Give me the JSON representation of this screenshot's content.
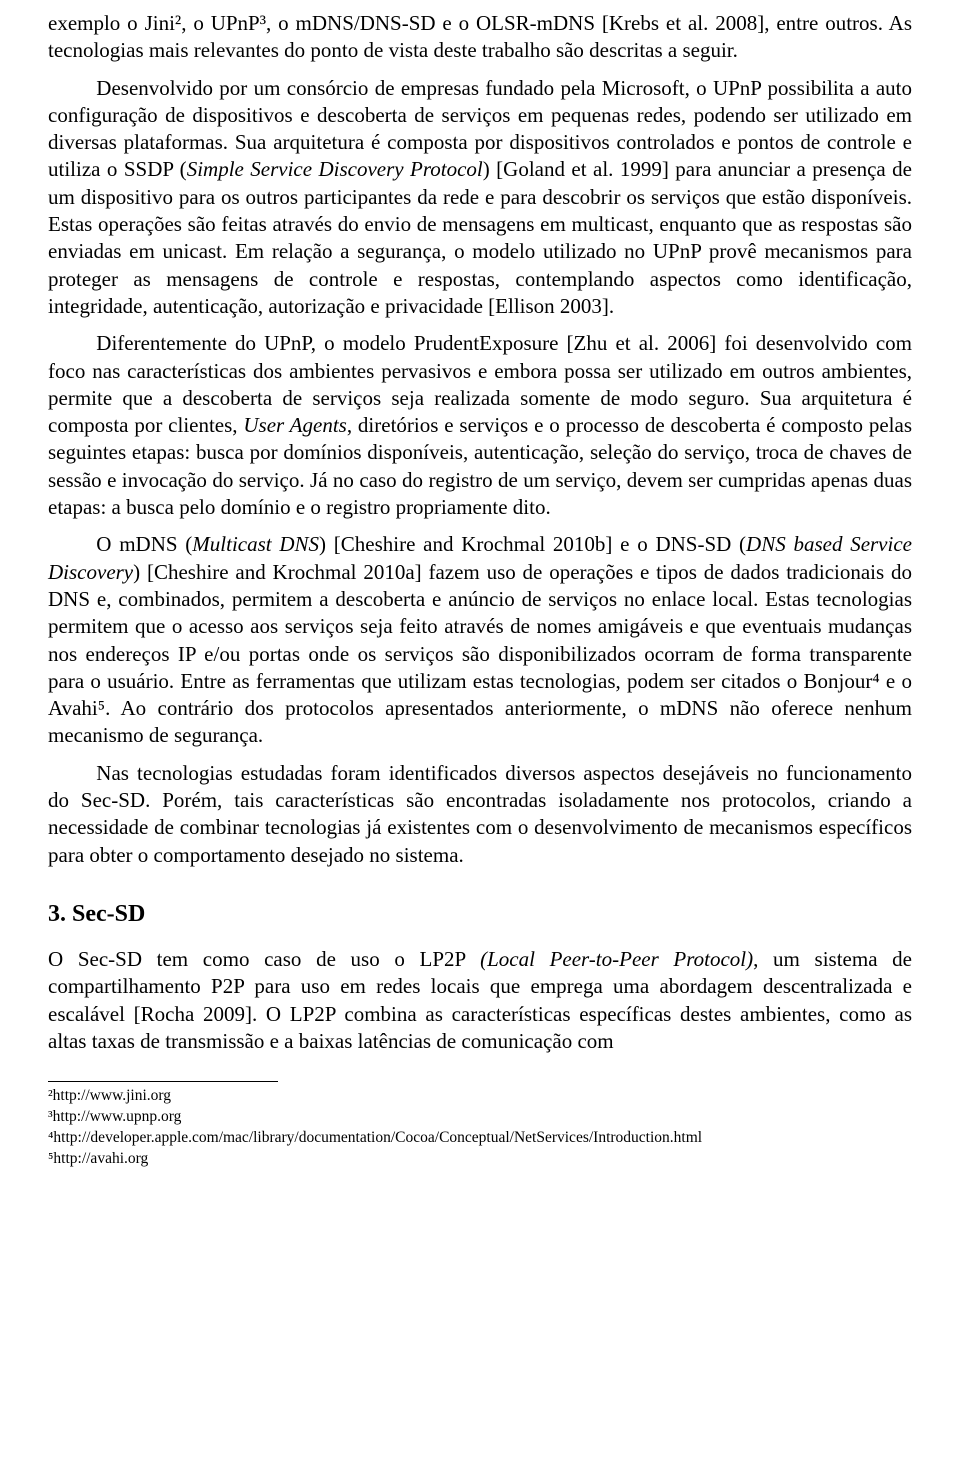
{
  "paragraphs": {
    "p1": "exemplo o Jini², o UPnP³, o mDNS/DNS-SD e o OLSR-mDNS [Krebs et al. 2008], entre outros. As tecnologias mais relevantes do ponto de vista deste trabalho são descritas a seguir.",
    "p2_a": "Desenvolvido por um consórcio de empresas fundado pela Microsoft, o UPnP possibilita a auto configuração de dispositivos e descoberta de serviços em pequenas redes, podendo ser utilizado em diversas plataformas. Sua arquitetura é composta por dispositivos controlados e pontos de controle e utiliza o SSDP (",
    "p2_i1": "Simple Service Discovery Protocol",
    "p2_b": ") [Goland et al. 1999] para anunciar a presença de um dispositivo para os outros participantes da rede e para descobrir os serviços que estão disponíveis. Estas operações são feitas através do envio de mensagens em multicast, enquanto que as respostas são enviadas em unicast. Em relação a segurança, o modelo utilizado no UPnP provê mecanismos para proteger as mensagens de controle e respostas, contemplando aspectos como identificação, integridade, autenticação, autorização e privacidade [Ellison 2003].",
    "p3_a": "Diferentemente do UPnP, o modelo PrudentExposure [Zhu et al. 2006] foi desenvolvido com foco nas características dos ambientes pervasivos e embora possa ser utilizado em outros ambientes, permite que a descoberta de serviços seja realizada somente de modo seguro. Sua arquitetura é composta por clientes, ",
    "p3_i1": "User Agents",
    "p3_b": ", diretórios e serviços e o processo de descoberta é composto pelas seguintes etapas: busca por domínios disponíveis, autenticação, seleção do serviço, troca de chaves de sessão e invocação do serviço. Já no caso do registro de um serviço, devem ser cumpridas apenas duas etapas: a busca pelo domínio e o registro propriamente dito.",
    "p4_a": "O mDNS (",
    "p4_i1": "Multicast DNS",
    "p4_b": ") [Cheshire and Krochmal 2010b] e o DNS-SD (",
    "p4_i2": "DNS based Service Discovery",
    "p4_c": ") [Cheshire and Krochmal 2010a] fazem uso de operações e tipos de dados tradicionais do DNS e, combinados, permitem a descoberta e anúncio de serviços no enlace local. Estas tecnologias permitem que o acesso aos serviços seja feito através de nomes amigáveis e que eventuais mudanças nos endereços IP e/ou portas onde os serviços são disponibilizados ocorram de forma transparente para o usuário. Entre as ferramentas que utilizam estas tecnologias, podem ser citados o Bonjour⁴ e o Avahi⁵. Ao contrário dos protocolos apresentados anteriormente, o mDNS não oferece nenhum mecanismo de segurança.",
    "p5": "Nas tecnologias estudadas foram identificados diversos aspectos desejáveis no funcionamento do Sec-SD. Porém, tais características são encontradas isoladamente nos protocolos, criando a necessidade de combinar tecnologias já existentes com o desenvolvimento de mecanismos específicos para obter o comportamento desejado no sistema.",
    "p6_a": "O Sec-SD tem como caso de uso o LP2P ",
    "p6_i1": "(Local Peer-to-Peer Protocol)",
    "p6_b": ", um sistema de compartilhamento P2P para uso em redes locais que emprega uma abordagem descentralizada e escalável [Rocha 2009]. O LP2P combina as características específicas destes ambientes, como as altas taxas de transmissão e a baixas latências de comunicação com"
  },
  "section": {
    "title": "3. Sec-SD"
  },
  "footnotes": {
    "fn2": "²http://www.jini.org",
    "fn3": "³http://www.upnp.org",
    "fn4": "⁴http://developer.apple.com/mac/library/documentation/Cocoa/Conceptual/NetServices/Introduction.html",
    "fn5": "⁵http://avahi.org"
  }
}
